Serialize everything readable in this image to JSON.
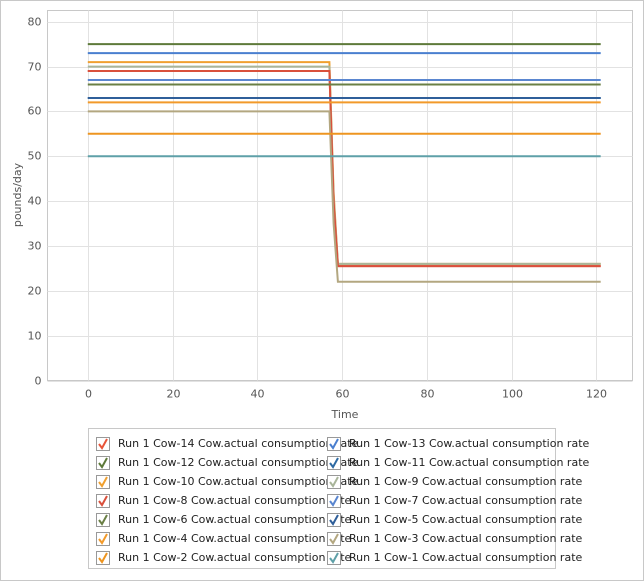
{
  "chart_data": {
    "type": "line",
    "x_label": "Time",
    "y_label": "pounds/day",
    "x": [
      0,
      57,
      58,
      59,
      121
    ],
    "xlim": [
      -9.5,
      128.5
    ],
    "xticks": [
      0,
      20,
      40,
      60,
      80,
      100,
      120
    ],
    "ylim": [
      0,
      82.5
    ],
    "yticks": [
      0,
      10,
      20,
      30,
      40,
      50,
      60,
      70,
      80
    ],
    "grid": true,
    "series": [
      {
        "name": "Run 1 Cow-14 Cow.actual consumption rate",
        "color": "#e8553a",
        "values": [
          69,
          69,
          40,
          25.5,
          25.5
        ]
      },
      {
        "name": "Run 1 Cow-13 Cow.actual consumption rate",
        "color": "#4a7fcf",
        "values": [
          73,
          73,
          73,
          73,
          73
        ]
      },
      {
        "name": "Run 1 Cow-12 Cow.actual consumption rate",
        "color": "#5e7a3a",
        "values": [
          75,
          75,
          75,
          75,
          75
        ]
      },
      {
        "name": "Run 1 Cow-11 Cow.actual consumption rate",
        "color": "#2e6aa3",
        "values": [
          63,
          63,
          63,
          63,
          63
        ]
      },
      {
        "name": "Run 1 Cow-10 Cow.actual consumption rate",
        "color": "#f0a030",
        "values": [
          71,
          71,
          42,
          26,
          26
        ]
      },
      {
        "name": "Run 1 Cow-9 Cow.actual consumption rate",
        "color": "#a9b59a",
        "values": [
          70,
          70,
          41,
          26,
          26
        ]
      },
      {
        "name": "Run 1 Cow-8 Cow.actual consumption rate",
        "color": "#d9503c",
        "values": [
          69,
          69,
          40,
          25.5,
          25.5
        ]
      },
      {
        "name": "Run 1 Cow-7 Cow.actual consumption rate",
        "color": "#5a86d0",
        "values": [
          67,
          67,
          67,
          67,
          67
        ]
      },
      {
        "name": "Run 1 Cow-6 Cow.actual consumption rate",
        "color": "#6a7f45",
        "values": [
          66,
          66,
          66,
          66,
          66
        ]
      },
      {
        "name": "Run 1 Cow-5 Cow.actual consumption rate",
        "color": "#2f5f9a",
        "values": [
          63,
          63,
          63,
          63,
          63
        ]
      },
      {
        "name": "Run 1 Cow-4 Cow.actual consumption rate",
        "color": "#f29a2a",
        "values": [
          62,
          62,
          62,
          62,
          62
        ]
      },
      {
        "name": "Run 1 Cow-3 Cow.actual consumption rate",
        "color": "#b3a780",
        "values": [
          60,
          60,
          35,
          22,
          22
        ]
      },
      {
        "name": "Run 1 Cow-2 Cow.actual consumption rate",
        "color": "#ee9520",
        "values": [
          55,
          55,
          55,
          55,
          55
        ]
      },
      {
        "name": "Run 1 Cow-1 Cow.actual consumption rate",
        "color": "#5fa0a8",
        "values": [
          50,
          50,
          50,
          50,
          50
        ]
      }
    ]
  }
}
